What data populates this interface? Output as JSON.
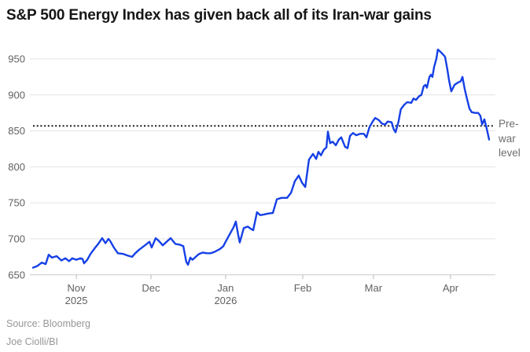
{
  "title": "S&P 500 Energy Index has given back all of its Iran-war gains",
  "annotation": {
    "pre_war_label": "Pre-\nwar\nlevel",
    "pre_war_level": 857
  },
  "footer": {
    "source": "Source: Bloomberg",
    "byline": "Joe Ciolli/BI"
  },
  "colors": {
    "line": "#1640E6",
    "dotted_line": "#1a1a1a",
    "grid": "#e3e3e3",
    "baseline": "#c8c8c8",
    "tick": "#b9b9b9",
    "axis_text": "#616161",
    "title_text": "#161616",
    "annotation_text": "#6e6e6e",
    "source_text": "#979797",
    "background": "#ffffff"
  },
  "chart_data": {
    "type": "line",
    "title": "S&P 500 Energy Index has given back all of its Iran-war gains",
    "x_start_date": "Oct 14, 2025",
    "x_end_date": "Apr 16, 2026",
    "x_unit": "days since Oct 14, 2025",
    "ylim": [
      645,
      975
    ],
    "yticks": [
      650,
      700,
      750,
      800,
      850,
      900,
      950
    ],
    "xticks": [
      {
        "label": "Nov",
        "sublabel": "2025",
        "t": 17.4
      },
      {
        "label": "Dec",
        "sublabel": "",
        "t": 47.4
      },
      {
        "label": "Jan",
        "sublabel": "2026",
        "t": 77.4
      },
      {
        "label": "Feb",
        "sublabel": "",
        "t": 108.4
      },
      {
        "label": "Mar",
        "sublabel": "",
        "t": 136.8
      },
      {
        "label": "Apr",
        "sublabel": "",
        "t": 167.8
      }
    ],
    "grid": "horizontal",
    "legend": "none",
    "pre_war_level": 857,
    "series": [
      {
        "name": "S&P 500 Energy Index",
        "color": "#1640E6",
        "t": [
          0,
          1.6,
          3.5,
          5.1,
          6.3,
          7.6,
          9.5,
          11.4,
          13,
          14.5,
          15.8,
          17.4,
          19,
          19.9,
          20.5,
          21.8,
          23.1,
          24.6,
          26.2,
          27.8,
          29.1,
          30.3,
          31,
          32.5,
          34.1,
          36.3,
          37.9,
          39.8,
          41.1,
          42.7,
          44.6,
          46.8,
          47.7,
          49.3,
          50.6,
          52.1,
          53.7,
          55.3,
          57.2,
          58.8,
          60.4,
          61.6,
          62.3,
          63.2,
          64.1,
          65.4,
          66.7,
          68.3,
          69.8,
          71.4,
          73,
          75.2,
          76.5,
          77.4,
          79.3,
          80.6,
          81.5,
          82.5,
          83.1,
          84.7,
          86.3,
          87.5,
          88.5,
          90,
          91.3,
          92.9,
          94.2,
          96.4,
          98,
          99.9,
          102.1,
          103.7,
          105.2,
          106.8,
          108.1,
          109.4,
          110.9,
          112.5,
          113.8,
          114.7,
          115.7,
          116.9,
          117.9,
          118.5,
          119.4,
          120.4,
          121.7,
          122.9,
          123.9,
          125.4,
          126.4,
          127.4,
          128.6,
          129.9,
          131.5,
          133,
          134,
          135.2,
          136.5,
          137.5,
          139,
          140.3,
          141.6,
          142.5,
          144.1,
          145,
          145.7,
          146.9,
          147.8,
          149.1,
          150.4,
          152,
          152.9,
          153.9,
          155.1,
          156.1,
          157,
          157.7,
          158.3,
          159.3,
          159.9,
          160.5,
          161.2,
          162.1,
          162.7,
          163.7,
          164.6,
          165.6,
          166.5,
          167.2,
          168.1,
          169.4,
          170.7,
          171.9,
          172.6,
          173.5,
          174.4,
          175.4,
          176.3,
          177.6,
          178.9,
          179.8,
          180.5,
          181.4,
          182.4,
          183.3
        ],
        "values": [
          660,
          662,
          667,
          665,
          678,
          674,
          676,
          670,
          673,
          669,
          673,
          671,
          673,
          672,
          666,
          671,
          679,
          686,
          693,
          701,
          694,
          700,
          697,
          688,
          680,
          679,
          677,
          675,
          680,
          685,
          690,
          696,
          688,
          701,
          697,
          691,
          696,
          701,
          693,
          692,
          690,
          668,
          664,
          674,
          671,
          675,
          679,
          681,
          680,
          680,
          682,
          686,
          690,
          696,
          708,
          716,
          724,
          705,
          695,
          715,
          717,
          714,
          712,
          737,
          733,
          734,
          735,
          736,
          755,
          757,
          757,
          764,
          780,
          788,
          778,
          772,
          810,
          818,
          811,
          821,
          816,
          824,
          827,
          849,
          833,
          835,
          830,
          838,
          841,
          828,
          826,
          843,
          847,
          844,
          846,
          846,
          841,
          855,
          863,
          868,
          865,
          860,
          859,
          863,
          862,
          852,
          848,
          863,
          880,
          886,
          890,
          889,
          895,
          893,
          898,
          900,
          912,
          914,
          910,
          925,
          928,
          925,
          939,
          950,
          963,
          960,
          957,
          953,
          936,
          920,
          905,
          914,
          917,
          919,
          925,
          908,
          895,
          881,
          876,
          875,
          875,
          871,
          859,
          866,
          852,
          838
        ]
      }
    ]
  }
}
